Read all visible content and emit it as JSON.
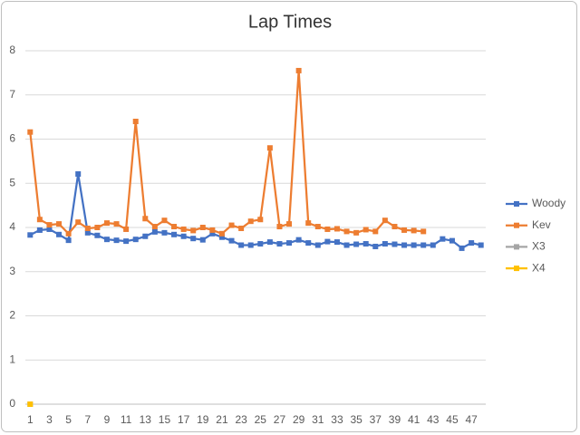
{
  "chart_data": {
    "type": "line",
    "title": "Lap Times",
    "categories": [
      1,
      null,
      3,
      null,
      5,
      null,
      7,
      null,
      9,
      null,
      11,
      null,
      13,
      null,
      15,
      null,
      17,
      null,
      19,
      null,
      21,
      null,
      23,
      null,
      25,
      null,
      27,
      null,
      29,
      null,
      31,
      null,
      33,
      null,
      35,
      null,
      37,
      null,
      39,
      null,
      41,
      null,
      43,
      null,
      45,
      null,
      47,
      null
    ],
    "series": [
      {
        "name": "Woody",
        "color": "#4472c4",
        "values": [
          3.83,
          3.94,
          3.96,
          3.84,
          3.71,
          5.21,
          3.88,
          3.82,
          3.73,
          3.71,
          3.69,
          3.73,
          3.8,
          3.9,
          3.88,
          3.84,
          3.8,
          3.75,
          3.72,
          3.86,
          3.78,
          3.7,
          3.6,
          3.6,
          3.63,
          3.67,
          3.63,
          3.65,
          3.72,
          3.65,
          3.6,
          3.68,
          3.67,
          3.6,
          3.62,
          3.63,
          3.57,
          3.63,
          3.62,
          3.6,
          3.6,
          3.6,
          3.6,
          3.74,
          3.7,
          3.53,
          3.65,
          3.6
        ]
      },
      {
        "name": "Kev",
        "color": "#ed7d31",
        "values": [
          6.16,
          4.18,
          4.06,
          4.08,
          3.86,
          4.12,
          3.98,
          4.0,
          4.1,
          4.08,
          3.96,
          6.4,
          4.2,
          4.02,
          4.16,
          4.02,
          3.96,
          3.93,
          4.0,
          3.94,
          3.86,
          4.05,
          3.98,
          4.14,
          4.18,
          5.8,
          4.02,
          4.08,
          7.55,
          4.1,
          4.02,
          3.96,
          3.97,
          3.91,
          3.88,
          3.95,
          3.91,
          4.16,
          4.02,
          3.94,
          3.93,
          3.91,
          null,
          null,
          null,
          null,
          null,
          null
        ]
      },
      {
        "name": "X3",
        "color": "#a5a5a5",
        "values": [
          0,
          null,
          null,
          null,
          null,
          null,
          null,
          null,
          null,
          null,
          null,
          null,
          null,
          null,
          null,
          null,
          null,
          null,
          null,
          null,
          null,
          null,
          null,
          null,
          null,
          null,
          null,
          null,
          null,
          null,
          null,
          null,
          null,
          null,
          null,
          null,
          null,
          null,
          null,
          null,
          null,
          null,
          null,
          null,
          null,
          null,
          null,
          null
        ]
      },
      {
        "name": "X4",
        "color": "#ffc000",
        "values": [
          0,
          null,
          null,
          null,
          null,
          null,
          null,
          null,
          null,
          null,
          null,
          null,
          null,
          null,
          null,
          null,
          null,
          null,
          null,
          null,
          null,
          null,
          null,
          null,
          null,
          null,
          null,
          null,
          null,
          null,
          null,
          null,
          null,
          null,
          null,
          null,
          null,
          null,
          null,
          null,
          null,
          null,
          null,
          null,
          null,
          null,
          null,
          null
        ]
      }
    ],
    "ylim": [
      0,
      8
    ],
    "yticks": [
      0,
      1,
      2,
      3,
      4,
      5,
      6,
      7,
      8
    ],
    "grid": true,
    "legend": "right"
  }
}
